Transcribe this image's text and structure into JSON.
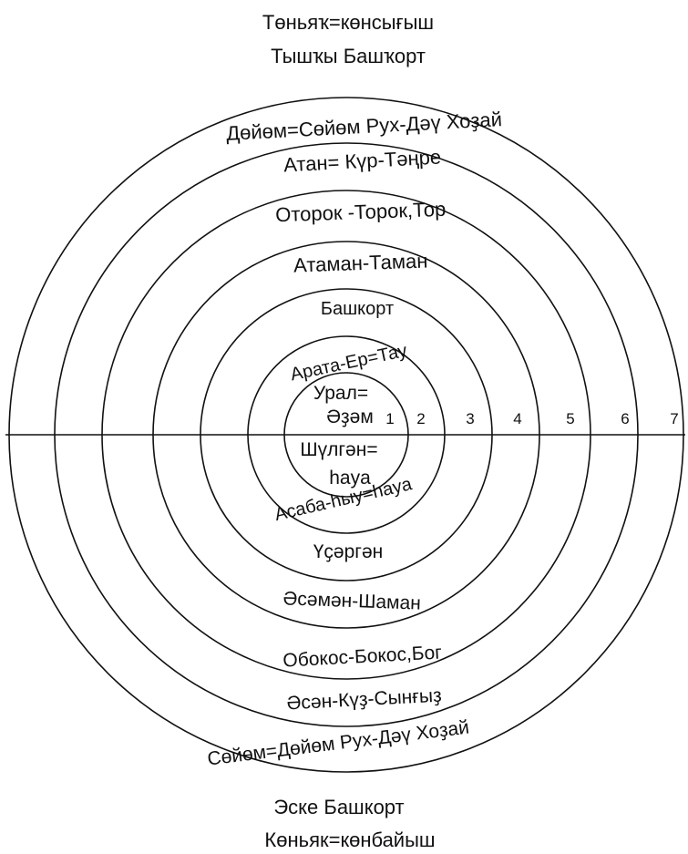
{
  "diagram": {
    "top_heading": {
      "line1": "Төньяҡ=көнсығыш",
      "line2": "Тышҡы Башҡорт"
    },
    "bottom_heading": {
      "line1": "Эске Башкорт",
      "line2": "Көньяк=көнбайыш"
    },
    "ring_numbers": [
      "1",
      "2",
      "3",
      "4",
      "5",
      "6",
      "7"
    ],
    "upper_labels": {
      "ring7": "Дөйөм=Сөйөм Рух-Дәү Хоҙай",
      "ring6": "Атан= Күр-Тәңре",
      "ring5": "Оторок -Торок,Тор",
      "ring4": "Атаман-Таман",
      "ring3": "Башкорт",
      "ring2": "Арата-Ер=Тау",
      "center_line1": "Урал=",
      "center_line2": "Әҙәм"
    },
    "lower_labels": {
      "center_line1": "Шүлгән=",
      "center_line2": "hаya",
      "ring2": "Асаба-hыу=hаya",
      "ring3": "Үҫәргән",
      "ring4": "Әсәмән-Шаман",
      "ring5": "Обокос-Бокос,Бог",
      "ring6": "Әсән-Күҙ-Сынғыҙ",
      "ring7": "Сөйөм=Дөйөм Рух-Дәү Хоҙай"
    }
  }
}
